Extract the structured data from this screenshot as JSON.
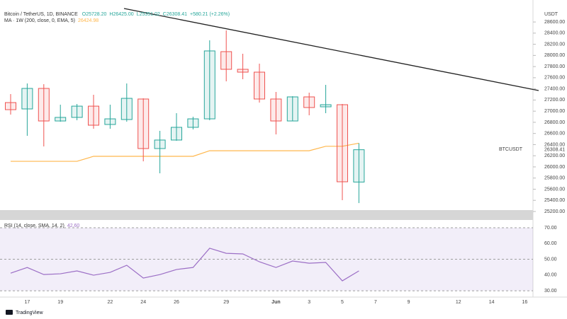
{
  "chart_data": {
    "type": "candlestick",
    "symbol": "Bitcoin / TetherUS, 1D, BINANCE",
    "legend_values": [
      "O25728.20",
      "H26425.00",
      "L25351.02",
      "C26308.41",
      "+580.21 (+2.26%)"
    ],
    "currency": "USDT",
    "price_tag_name": "BTCUSDT",
    "price_tag": {
      "value": 26308.41,
      "label": "26308.41"
    },
    "categories": [
      null,
      "17",
      null,
      "19",
      null,
      null,
      "22",
      null,
      "24",
      null,
      "26",
      null,
      null,
      "29",
      null,
      null,
      "Jun",
      null,
      "3",
      null,
      "5",
      null,
      "7",
      null,
      "9",
      null,
      null,
      "12",
      null,
      "14",
      null,
      "16"
    ],
    "open": [
      27154,
      27040,
      27408,
      26824,
      26888,
      27090,
      26761,
      26850,
      27218,
      26329,
      26482,
      26710,
      26862,
      28068,
      27751,
      27700,
      27218,
      26824,
      27256,
      27078,
      27116,
      25728.2,
      null,
      null,
      null,
      null,
      null,
      null,
      null,
      null,
      null,
      null
    ],
    "high": [
      27307,
      27497,
      27484,
      27116,
      27129,
      27294,
      27116,
      27497,
      27230,
      26647,
      26964,
      26900,
      28271,
      28449,
      28030,
      27852,
      27345,
      27268,
      27332,
      27472,
      27129,
      26425,
      null,
      null,
      null,
      null,
      null,
      null,
      null,
      null,
      null,
      null
    ],
    "low": [
      26939,
      26558,
      26367,
      26811,
      26837,
      26684,
      26684,
      26811,
      26100,
      25885,
      26469,
      26672,
      26837,
      27535,
      27573,
      27154,
      26583,
      26824,
      26926,
      26964,
      25403,
      25351.02,
      null,
      null,
      null,
      null,
      null,
      null,
      null,
      null,
      null,
      null
    ],
    "close": [
      27027,
      27408,
      26824,
      26888,
      27090,
      26748,
      26862,
      27230,
      26329,
      26482,
      26710,
      26862,
      28081,
      27751,
      27700,
      27218,
      26824,
      27256,
      27065,
      27116,
      25733,
      26308.41,
      null,
      null,
      null,
      null,
      null,
      null,
      null,
      null,
      null,
      null
    ],
    "up_color": "#26a69a",
    "down_color": "#ef5350",
    "ma": {
      "name": "MA · 1W (200, close, 0, EMA, 5)",
      "value_label": "26424.98",
      "color": "#ffb74d",
      "values": [
        26100,
        26100,
        26100,
        26100,
        26100,
        26190,
        26190,
        26190,
        26190,
        26190,
        26190,
        26190,
        26290,
        26290,
        26290,
        26290,
        26290,
        26290,
        26290,
        26370,
        26370,
        26424.98,
        null,
        null,
        null,
        null,
        null,
        null,
        null,
        null,
        null,
        null
      ]
    },
    "ylim": [
      25238,
      28931
    ],
    "yticks": [
      {
        "value": 25200,
        "label": "25200.00"
      },
      {
        "value": 25400,
        "label": "25400.00"
      },
      {
        "value": 25600,
        "label": "25600.00"
      },
      {
        "value": 25800,
        "label": "25800.00"
      },
      {
        "value": 26000,
        "label": "26000.00"
      },
      {
        "value": 26200,
        "label": "26200.00"
      },
      {
        "value": 26400,
        "label": "26400.00"
      },
      {
        "value": 26600,
        "label": "26600.00"
      },
      {
        "value": 26800,
        "label": "26800.00"
      },
      {
        "value": 27000,
        "label": "27000.00"
      },
      {
        "value": 27200,
        "label": "27200.00"
      },
      {
        "value": 27400,
        "label": "27400.00"
      },
      {
        "value": 27600,
        "label": "27600.00"
      },
      {
        "value": 27800,
        "label": "27800.00"
      },
      {
        "value": 28000,
        "label": "28000.00"
      },
      {
        "value": 28200,
        "label": "28200.00"
      },
      {
        "value": 28400,
        "label": "28400.00"
      },
      {
        "value": 28600,
        "label": "28600.00"
      }
    ],
    "rsi": {
      "name": "RSI (14, close, SMA, 14, 2)",
      "value_label": "42.60",
      "color": "#9c6fc6",
      "values": [
        41.2,
        44.8,
        40.3,
        40.8,
        42.6,
        39.9,
        41.7,
        46.2,
        38.1,
        40.3,
        43.5,
        44.8,
        57.0,
        53.8,
        53.4,
        48.4,
        44.8,
        48.9,
        47.5,
        48.0,
        36.3,
        42.6,
        null,
        null,
        null,
        null,
        null,
        null,
        null,
        null,
        null,
        null
      ],
      "ylim": [
        26,
        74.5
      ],
      "yticks": [
        {
          "value": 30,
          "label": "30.00"
        },
        {
          "value": 40,
          "label": "40.00"
        },
        {
          "value": 50,
          "label": "50.00"
        },
        {
          "value": 60,
          "label": "60.00"
        },
        {
          "value": 70,
          "label": "70.00"
        }
      ],
      "band": [
        30,
        70
      ]
    },
    "brand": "TradingView"
  }
}
